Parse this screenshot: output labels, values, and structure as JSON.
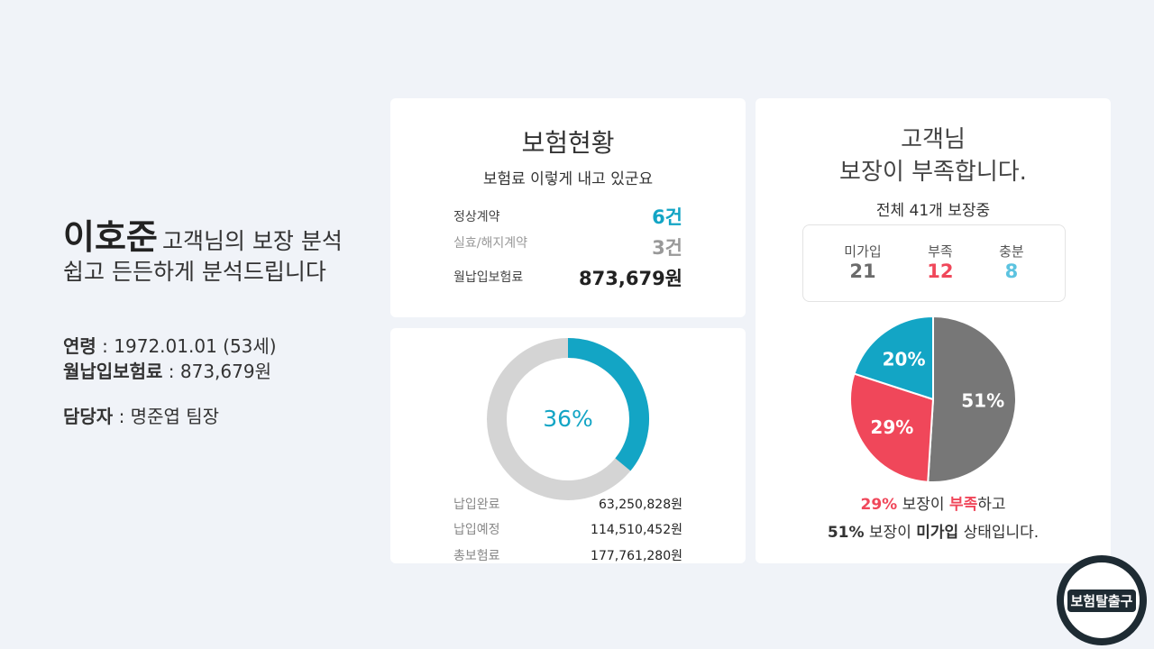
{
  "left": {
    "name": "이호준",
    "name_suffix": "고객님의 보장 분석",
    "subtitle": "쉽고 든든하게 분석드립니다",
    "separator": ":",
    "info": [
      {
        "label": "연령",
        "value": "1972.01.01 (53세)"
      },
      {
        "label": "월납입보험료",
        "value": "873,679원"
      },
      {
        "label": "담당자",
        "value": "명준엽 팀장"
      }
    ]
  },
  "status": {
    "title": "보험현황",
    "subtitle": "보험료 이렇게 내고 있군요",
    "rows": [
      {
        "label": "정상계약",
        "value": "6건"
      },
      {
        "label": "실효/해지계약",
        "value": "3건"
      },
      {
        "label": "월납입보험료",
        "value": "873,679원"
      }
    ]
  },
  "progress": {
    "type": "donut",
    "values": [
      36
    ],
    "value_labels": [
      "36%"
    ],
    "color": "#13a5c5",
    "track_color": "#d4d4d4",
    "rows": [
      {
        "label": "납입완료",
        "value": "63,250,828원"
      },
      {
        "label": "납입예정",
        "value": "114,510,452원"
      },
      {
        "label": "총보험료",
        "value": "177,761,280원"
      }
    ]
  },
  "coverage": {
    "title_lines": [
      "고객님",
      "보장이 부족합니다."
    ],
    "subtitle": "전체 41개 보장중",
    "stats": [
      {
        "label": "미가입",
        "value": 21,
        "color": "#6b6b6b"
      },
      {
        "label": "부족",
        "value": 12,
        "color": "#f0475a"
      },
      {
        "label": "충분",
        "value": 8,
        "color": "#5cc3e0"
      }
    ],
    "pie": {
      "type": "pie",
      "values": [
        51,
        29,
        20
      ],
      "value_labels": [
        "51%",
        "29%",
        "20%"
      ],
      "colors": [
        "#777777",
        "#f0475a",
        "#13a5c5"
      ]
    },
    "summary": [
      [
        "29%",
        "보장이",
        "부족",
        "하고"
      ],
      [
        "51%",
        "보장이",
        "미가입",
        "상태입니다."
      ]
    ]
  },
  "logo": "보험탈출구"
}
